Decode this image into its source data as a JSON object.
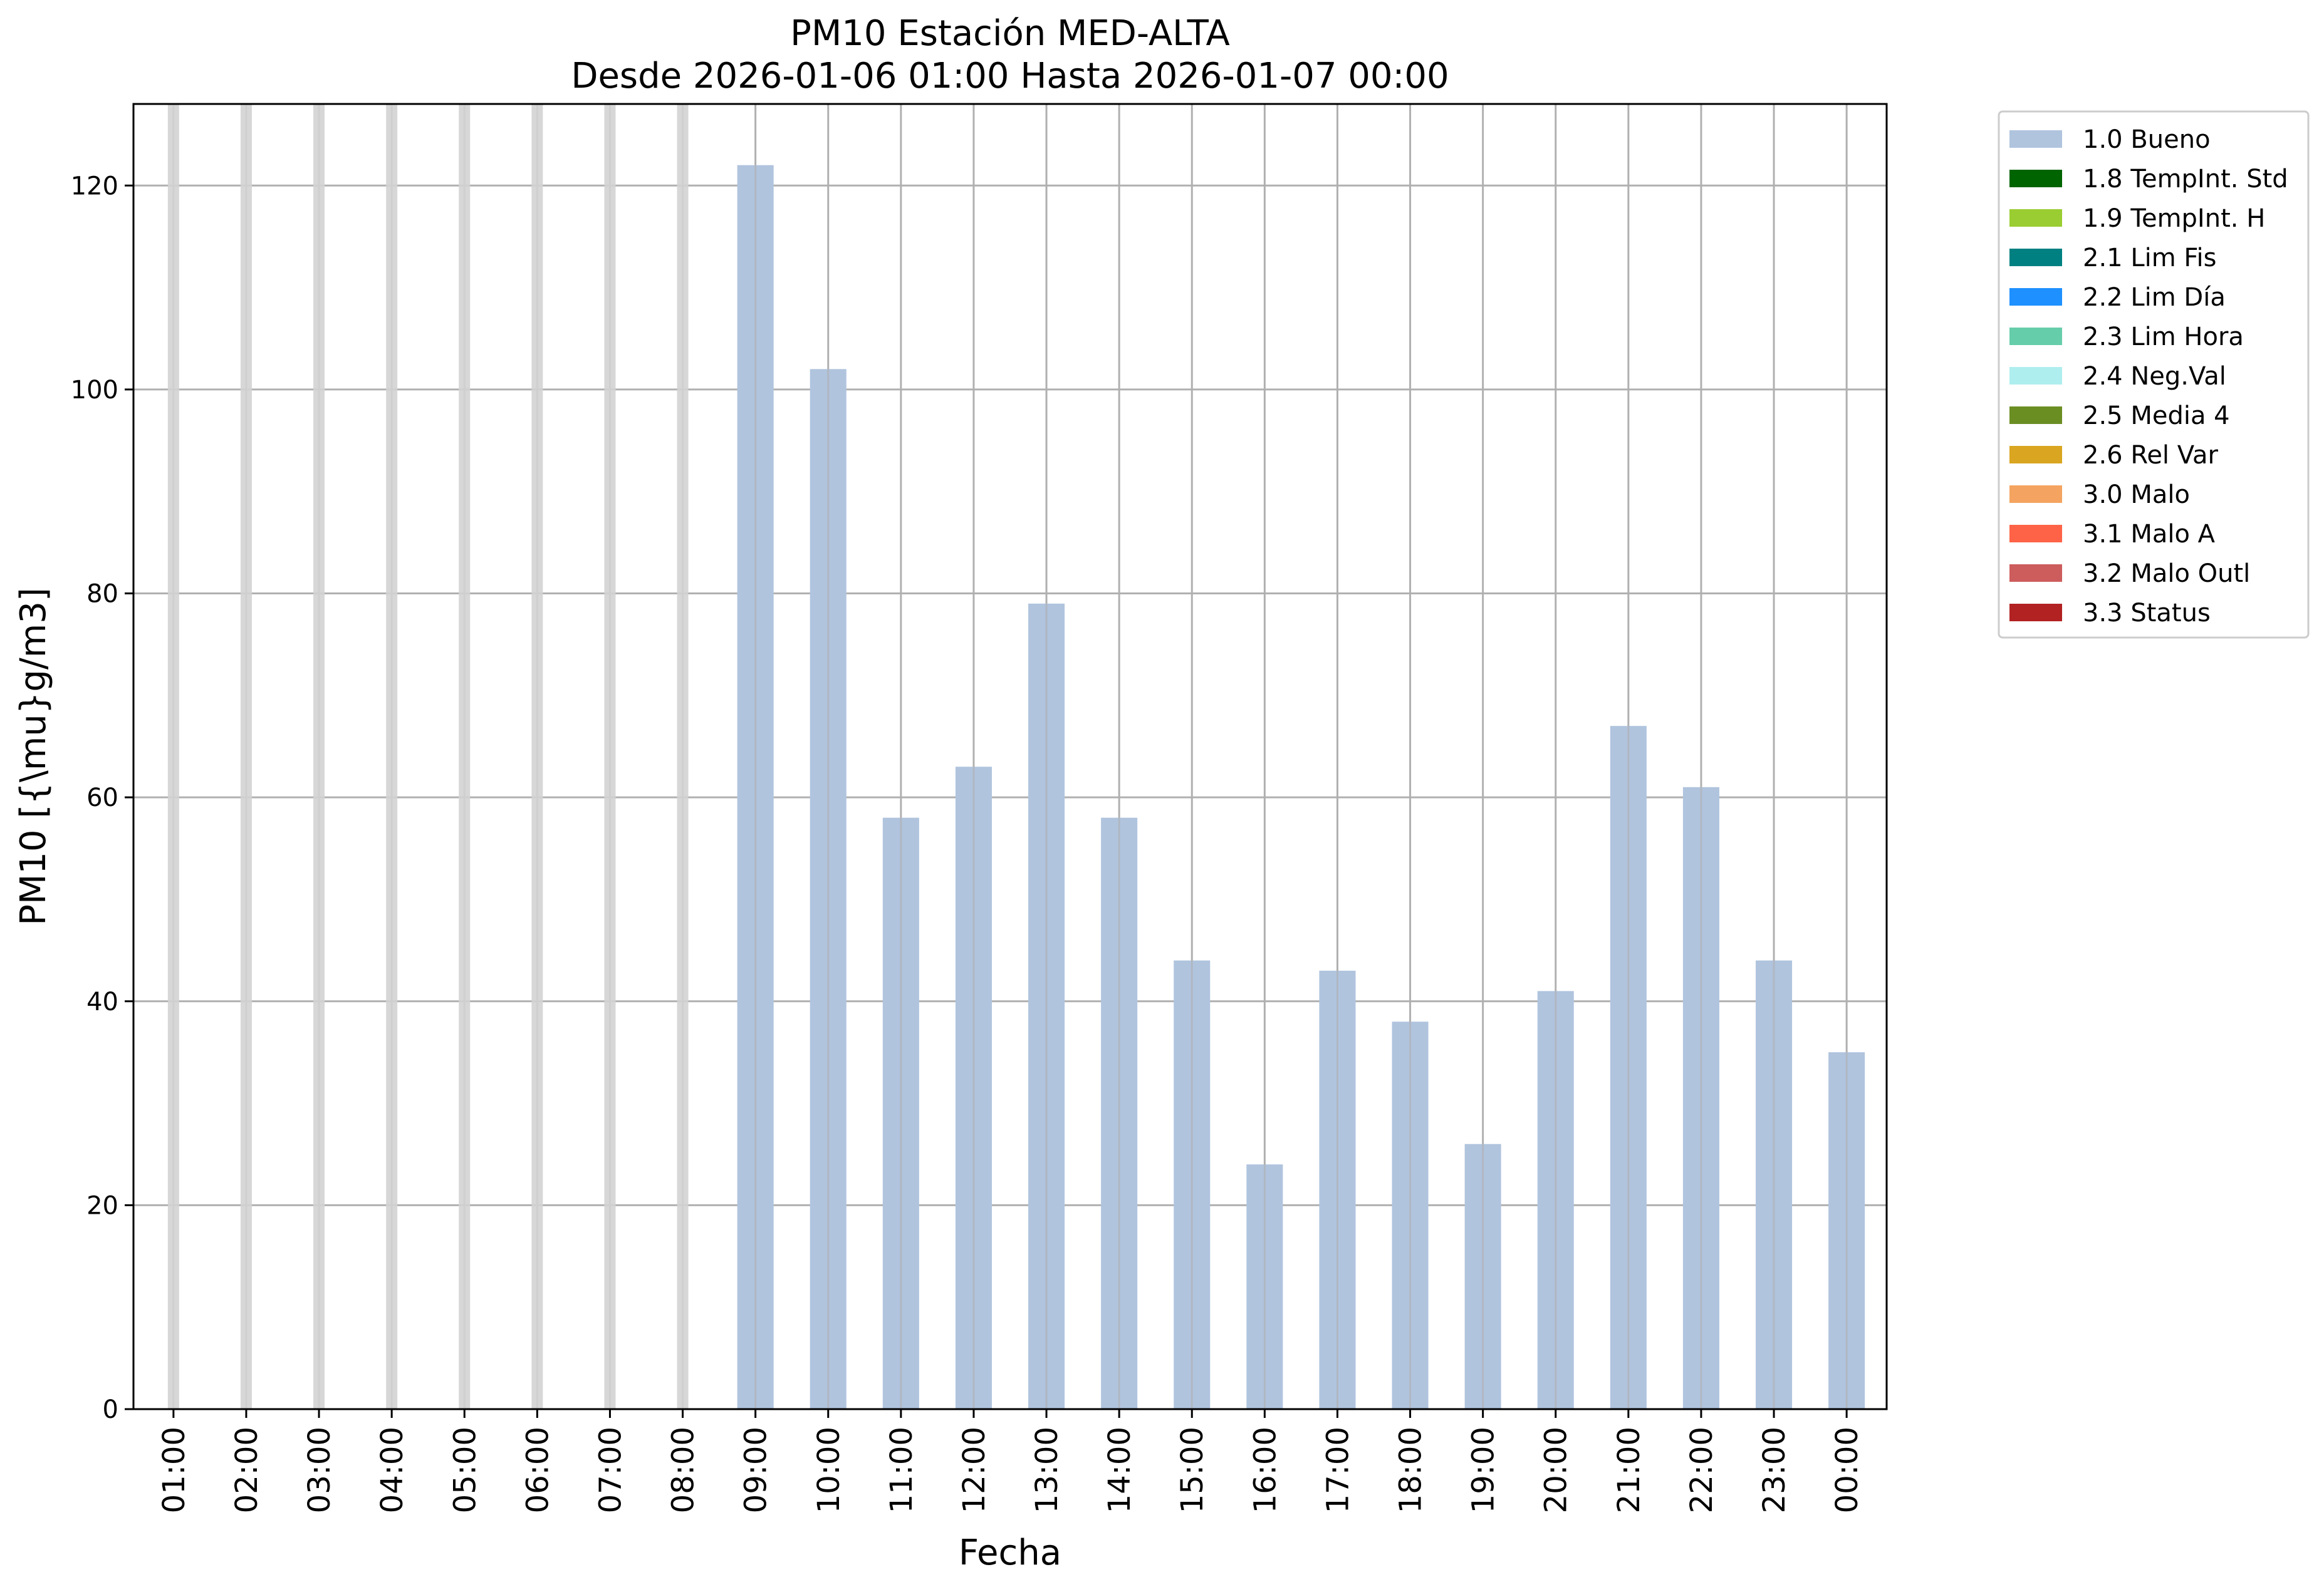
{
  "chart_data": {
    "type": "bar",
    "title": "PM10 Estación MED-ALTA",
    "subtitle": "Desde 2026-01-06 01:00 Hasta 2026-01-07 00:00",
    "xlabel": "Fecha",
    "ylabel": "PM10 [{\\mu}g/m3]",
    "ylim": [
      0,
      128
    ],
    "yticks": [
      0,
      20,
      40,
      60,
      80,
      100,
      120
    ],
    "grid": true,
    "legend_placement": "outside-top-right",
    "categories": [
      "01:00",
      "02:00",
      "03:00",
      "04:00",
      "05:00",
      "06:00",
      "07:00",
      "08:00",
      "09:00",
      "10:00",
      "11:00",
      "12:00",
      "13:00",
      "14:00",
      "15:00",
      "16:00",
      "17:00",
      "18:00",
      "19:00",
      "20:00",
      "21:00",
      "22:00",
      "23:00",
      "00:00"
    ],
    "missing_color": "#d3d3d3",
    "series": [
      {
        "name": "1.0 Bueno",
        "color": "#b0c4de",
        "values": [
          null,
          null,
          null,
          null,
          null,
          null,
          null,
          null,
          122,
          102,
          58,
          63,
          79,
          58,
          44,
          24,
          43,
          38,
          26,
          41,
          67,
          61,
          44,
          35
        ]
      }
    ],
    "legend": [
      {
        "label": "1.0 Bueno",
        "color": "#b0c4de"
      },
      {
        "label": "1.8 TempInt. Std",
        "color": "#006400"
      },
      {
        "label": "1.9 TempInt. H",
        "color": "#9acd32"
      },
      {
        "label": "2.1 Lim Fis",
        "color": "#008080"
      },
      {
        "label": "2.2 Lim Día",
        "color": "#1e90ff"
      },
      {
        "label": "2.3 Lim Hora",
        "color": "#66cdaa"
      },
      {
        "label": "2.4 Neg.Val",
        "color": "#afeeee"
      },
      {
        "label": "2.5 Media 4",
        "color": "#6b8e23"
      },
      {
        "label": "2.6 Rel Var",
        "color": "#daa520"
      },
      {
        "label": "3.0 Malo",
        "color": "#f4a460"
      },
      {
        "label": "3.1 Malo A",
        "color": "#ff6347"
      },
      {
        "label": "3.2 Malo Outl",
        "color": "#cd5c5c"
      },
      {
        "label": "3.3 Status",
        "color": "#b22222"
      }
    ]
  }
}
